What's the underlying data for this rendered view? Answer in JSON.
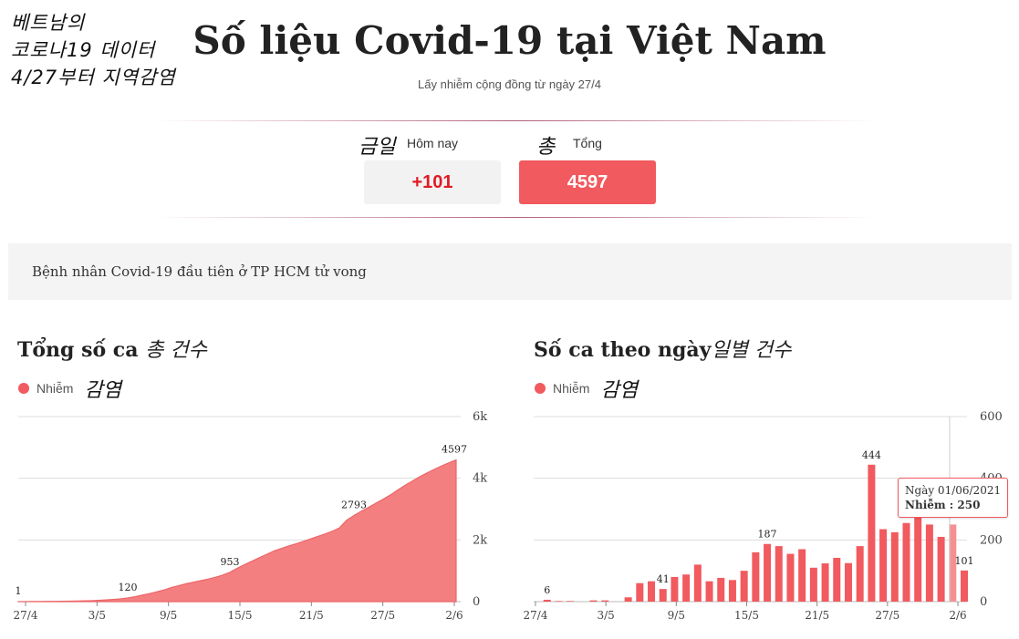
{
  "annotation": {
    "line1": "베트남의",
    "line2": "코로나19 데이터",
    "line3": "4/27부터 지역감염"
  },
  "header": {
    "title": "Số liệu Covid-19 tại Việt Nam",
    "subtitle": "Lấy nhiễm cộng đồng từ ngày 27/4"
  },
  "stats": {
    "today": {
      "label": "Hôm nay",
      "label_kr": "금일",
      "value": "+101"
    },
    "total": {
      "label": "Tổng",
      "label_kr": "총",
      "value": "4597"
    }
  },
  "news": {
    "headline": "Bệnh nhân Covid-19 đầu tiên ở TP HCM tử vong"
  },
  "colors": {
    "accent": "#f15a5e",
    "area_fill": "#f47f80",
    "today_text": "#e01b24"
  },
  "charts": {
    "cumulative": {
      "title": "Tổng số ca",
      "title_kr": "총 건수",
      "legend": "Nhiễm",
      "legend_kr": "감염"
    },
    "daily": {
      "title": "Số ca theo ngày",
      "title_kr": "일별 건수",
      "legend": "Nhiễm",
      "legend_kr": "감염",
      "tooltip": {
        "date": "Ngày 01/06/2021",
        "label": "Nhiễm",
        "value": "250"
      }
    }
  },
  "chart_data": [
    {
      "type": "area",
      "title": "Tổng số ca",
      "series": [
        {
          "name": "Nhiễm",
          "color": "#f47f80"
        }
      ],
      "x_ticks": [
        "27/4",
        "3/5",
        "9/5",
        "15/5",
        "21/5",
        "27/5",
        "2/6"
      ],
      "y_ticks": [
        "0",
        "2k",
        "4k",
        "6k"
      ],
      "ylim": [
        0,
        6000
      ],
      "y_axis_side": "right",
      "grid": true,
      "values": [
        1,
        2,
        3,
        5,
        7,
        9,
        12,
        15,
        20,
        25,
        30,
        40,
        55,
        70,
        90,
        120,
        160,
        210,
        260,
        320,
        380,
        460,
        520,
        580,
        630,
        680,
        730,
        790,
        860,
        953,
        1080,
        1200,
        1310,
        1420,
        1530,
        1640,
        1720,
        1800,
        1870,
        1950,
        2030,
        2110,
        2190,
        2280,
        2390,
        2640,
        2793,
        2930,
        3060,
        3190,
        3320,
        3460,
        3620,
        3770,
        3910,
        4050,
        4170,
        4290,
        4400,
        4500,
        4597
      ],
      "annotations": [
        {
          "index": 0,
          "label": "1"
        },
        {
          "index": 15,
          "label": "120"
        },
        {
          "index": 29,
          "label": "953"
        },
        {
          "index": 46,
          "label": "2793"
        },
        {
          "index": 60,
          "label": "4597"
        }
      ]
    },
    {
      "type": "bar",
      "title": "Số ca theo ngày",
      "series": [
        {
          "name": "Nhiễm",
          "color": "#f15a5e"
        }
      ],
      "x_ticks": [
        "27/4",
        "3/5",
        "9/5",
        "15/5",
        "21/5",
        "27/5",
        "2/6"
      ],
      "y_ticks": [
        "0",
        "200",
        "400",
        "600"
      ],
      "ylim": [
        0,
        600
      ],
      "y_axis_side": "right",
      "grid": true,
      "values": [
        0,
        6,
        2,
        2,
        0,
        4,
        4,
        0,
        14,
        60,
        66,
        41,
        80,
        88,
        120,
        66,
        77,
        70,
        100,
        160,
        187,
        180,
        155,
        170,
        110,
        124,
        142,
        125,
        180,
        444,
        235,
        225,
        255,
        275,
        250,
        210,
        250,
        101
      ],
      "annotations": [
        {
          "index": 1,
          "label": "6"
        },
        {
          "index": 11,
          "label": "41"
        },
        {
          "index": 20,
          "label": "187"
        },
        {
          "index": 29,
          "label": "444"
        },
        {
          "index": 37,
          "label": "101"
        }
      ],
      "highlight_index": 36
    }
  ]
}
